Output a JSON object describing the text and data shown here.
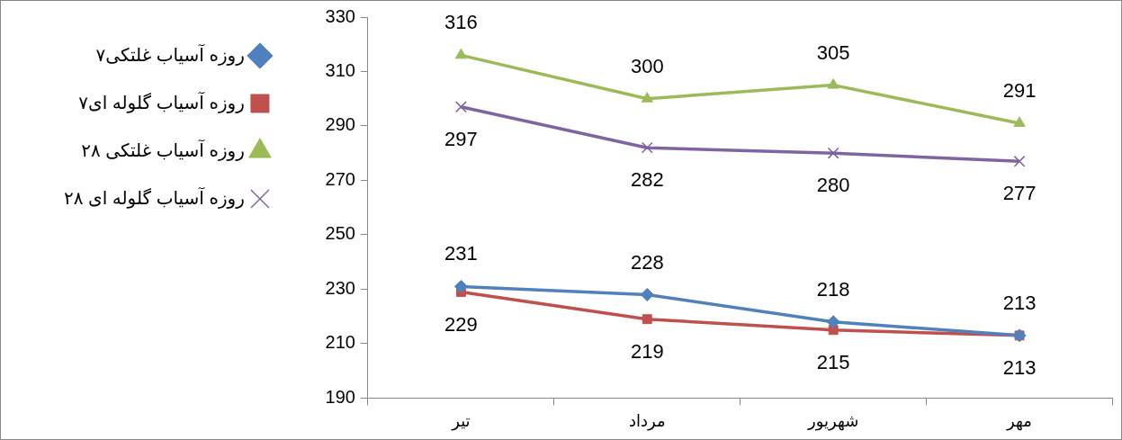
{
  "chart_data": {
    "type": "line",
    "categories": [
      "تیر",
      "مرداد",
      "شهریور",
      "مهر"
    ],
    "series": [
      {
        "name": "۷روزه آسیاب غلتکی",
        "color": "#4f81bd",
        "marker": "diamond",
        "values": [
          231,
          228,
          218,
          213
        ]
      },
      {
        "name": "۷روزه آسیاب گلوله ای",
        "color": "#c0504d",
        "marker": "square",
        "values": [
          229,
          219,
          215,
          213
        ]
      },
      {
        "name": "۲۸ روزه آسیاب غلتکی",
        "color": "#9bbb59",
        "marker": "triangle",
        "values": [
          316,
          300,
          305,
          291
        ]
      },
      {
        "name": "۲۸ روزه آسیاب گلوله ای",
        "color": "#8064a2",
        "marker": "cross",
        "values": [
          297,
          282,
          280,
          277
        ]
      }
    ],
    "ylim": [
      190,
      330
    ],
    "yticks": [
      190,
      210,
      230,
      250,
      270,
      290,
      310,
      330
    ],
    "grid": false,
    "legend": "left",
    "data_labels": true
  }
}
